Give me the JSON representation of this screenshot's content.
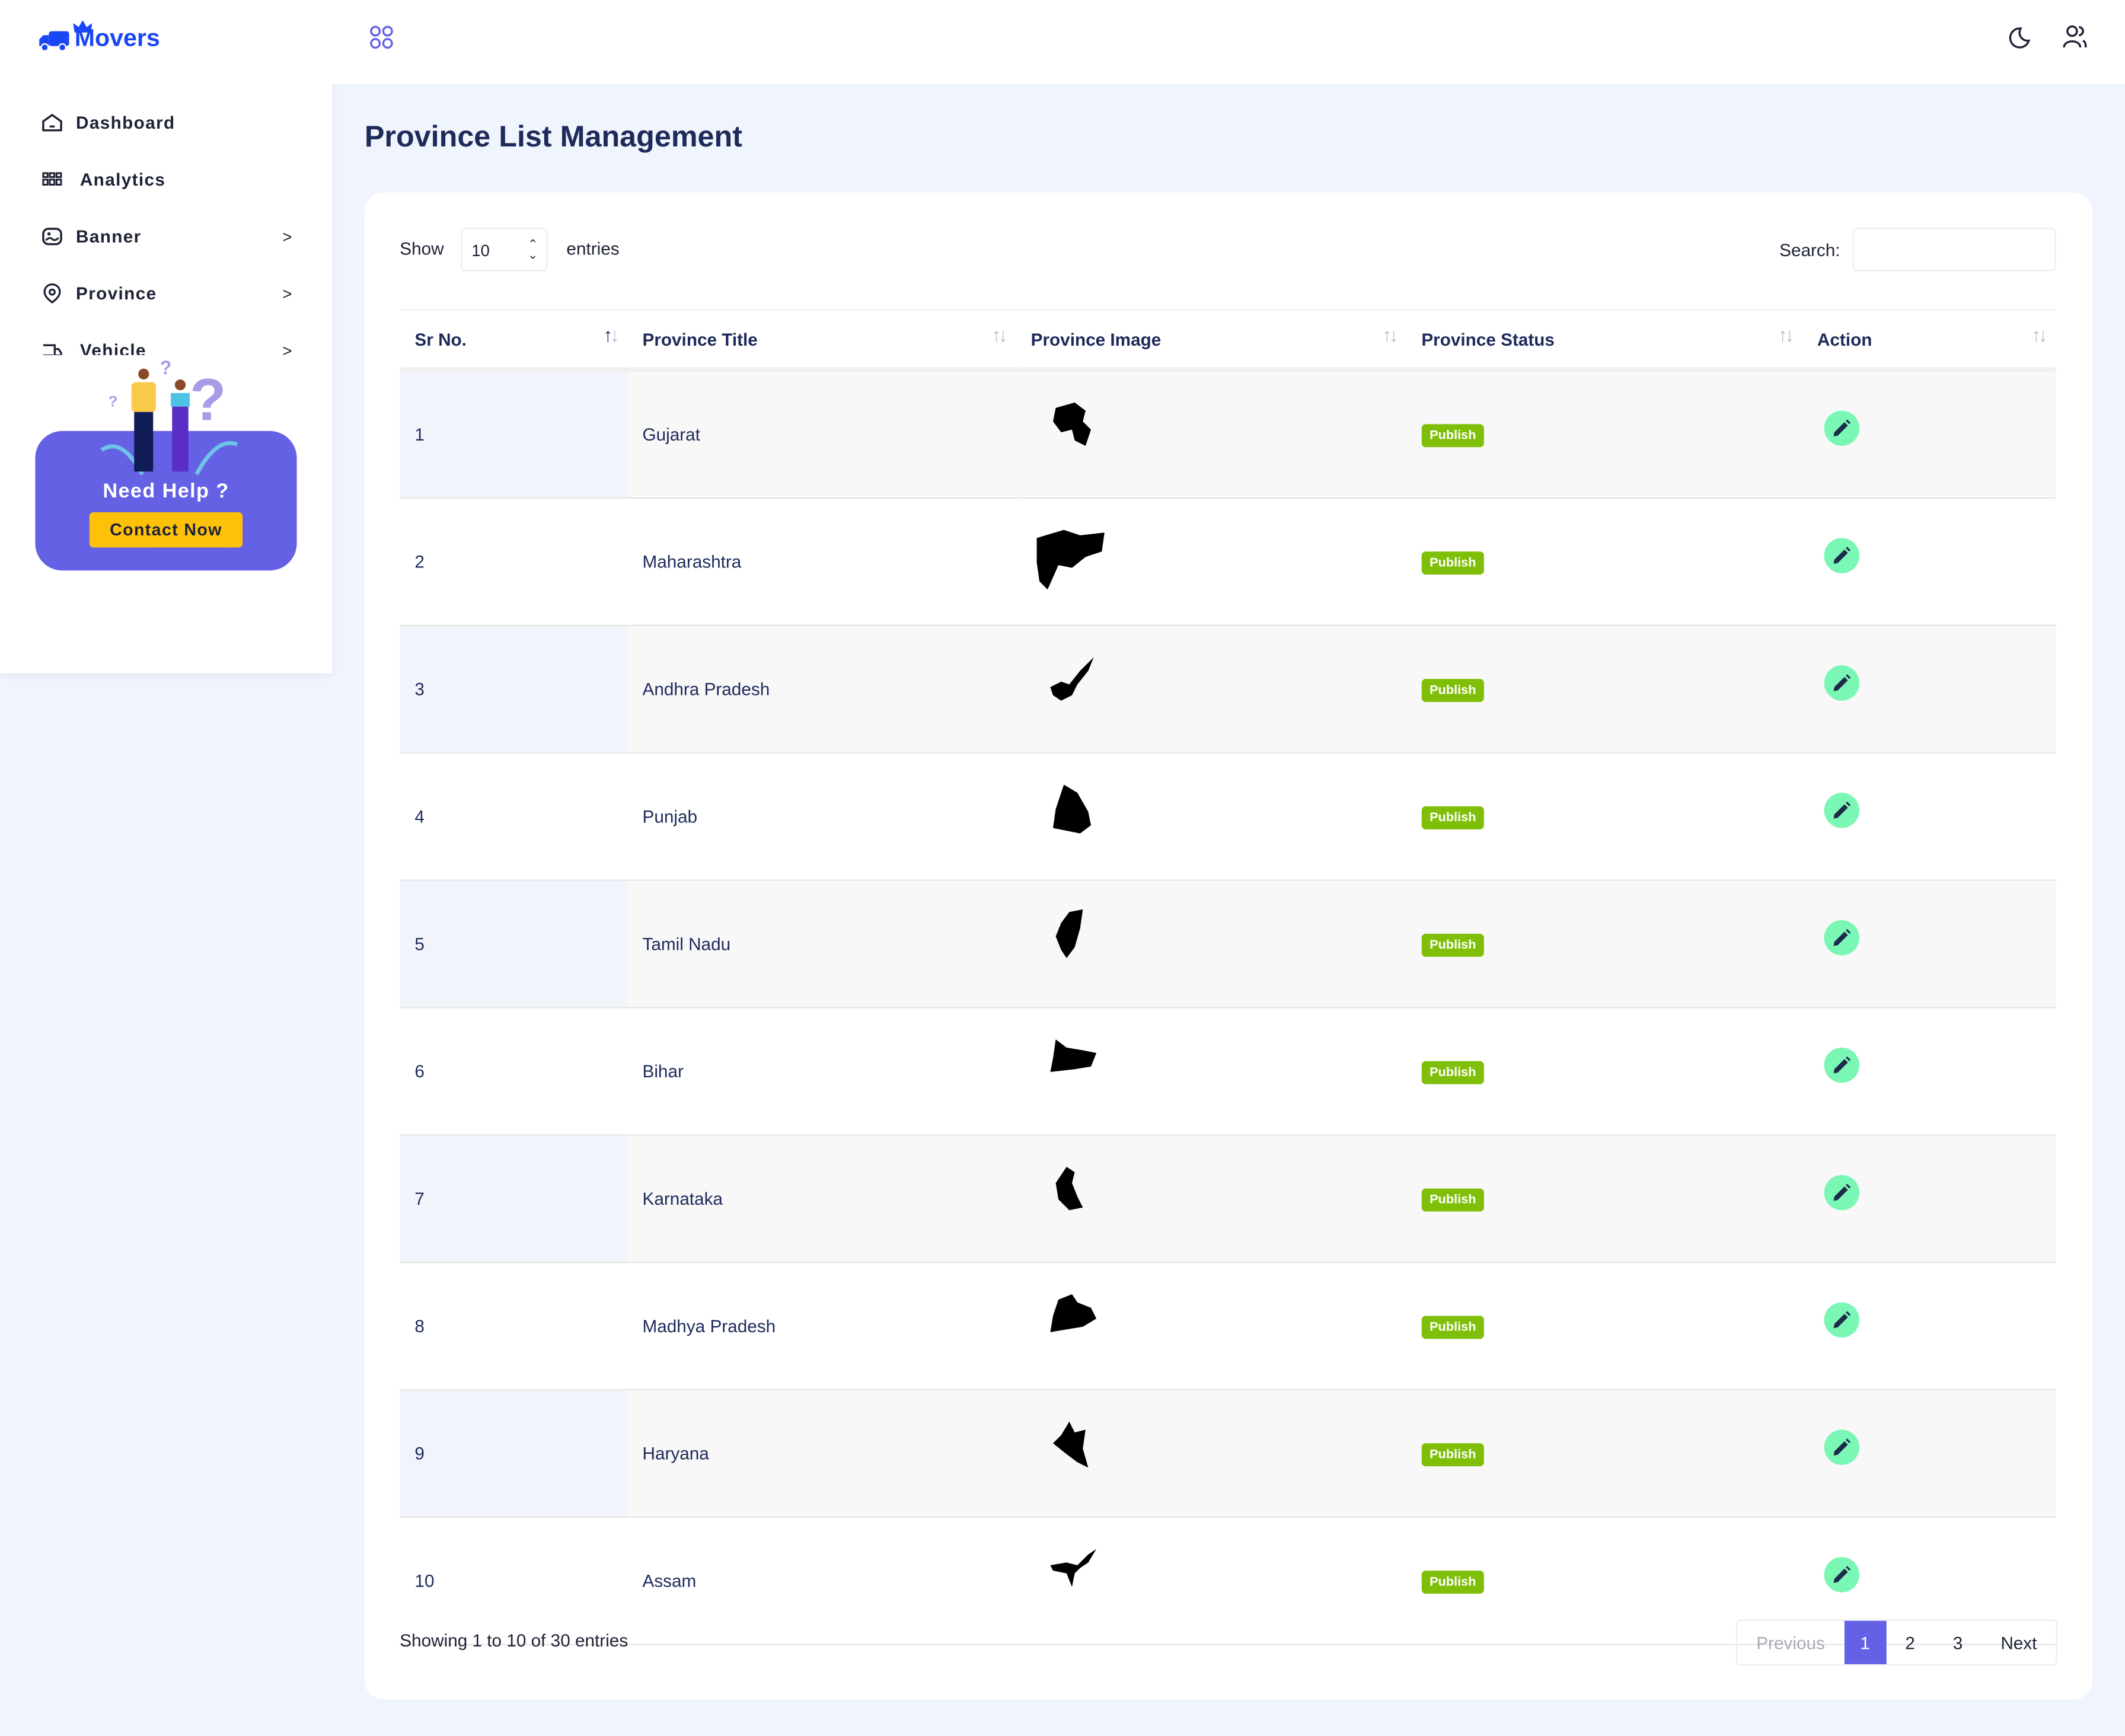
{
  "brand": "Movers",
  "sidebar": {
    "items": [
      {
        "label": "Dashboard",
        "icon": "home-icon"
      },
      {
        "label": "Analytics",
        "icon": "grid-icon"
      },
      {
        "label": "Banner",
        "icon": "image-icon"
      },
      {
        "label": "Province",
        "icon": "location-icon"
      },
      {
        "label": "Vehicle",
        "icon": "truck-icon"
      }
    ],
    "help": {
      "title": "Need Help ?",
      "button": "Contact Now"
    }
  },
  "page": {
    "title": "Province List Management"
  },
  "table_controls": {
    "show": "Show",
    "entries_value": "10",
    "entries": "entries",
    "search_label": "Search:",
    "search_value": ""
  },
  "columns": [
    "Sr No.",
    "Province Title",
    "Province Image",
    "Province Status",
    "Action"
  ],
  "rows": [
    {
      "sr": "1",
      "title": "Gujarat",
      "status": "Publish"
    },
    {
      "sr": "2",
      "title": "Maharashtra",
      "status": "Publish"
    },
    {
      "sr": "3",
      "title": "Andhra Pradesh",
      "status": "Publish"
    },
    {
      "sr": "4",
      "title": "Punjab",
      "status": "Publish"
    },
    {
      "sr": "5",
      "title": "Tamil Nadu",
      "status": "Publish"
    },
    {
      "sr": "6",
      "title": "Bihar",
      "status": "Publish"
    },
    {
      "sr": "7",
      "title": "Karnataka",
      "status": "Publish"
    },
    {
      "sr": "8",
      "title": "Madhya Pradesh",
      "status": "Publish"
    },
    {
      "sr": "9",
      "title": "Haryana",
      "status": "Publish"
    },
    {
      "sr": "10",
      "title": "Assam",
      "status": "Publish"
    }
  ],
  "footer": {
    "info": "Showing 1 to 10 of 30 entries",
    "prev": "Previous",
    "pages": [
      "1",
      "2",
      "3"
    ],
    "next": "Next"
  },
  "colors": {
    "accent": "#6461e4",
    "brand": "#1b46f5",
    "publish": "#7fbf0a",
    "edit": "#7af7b4"
  }
}
